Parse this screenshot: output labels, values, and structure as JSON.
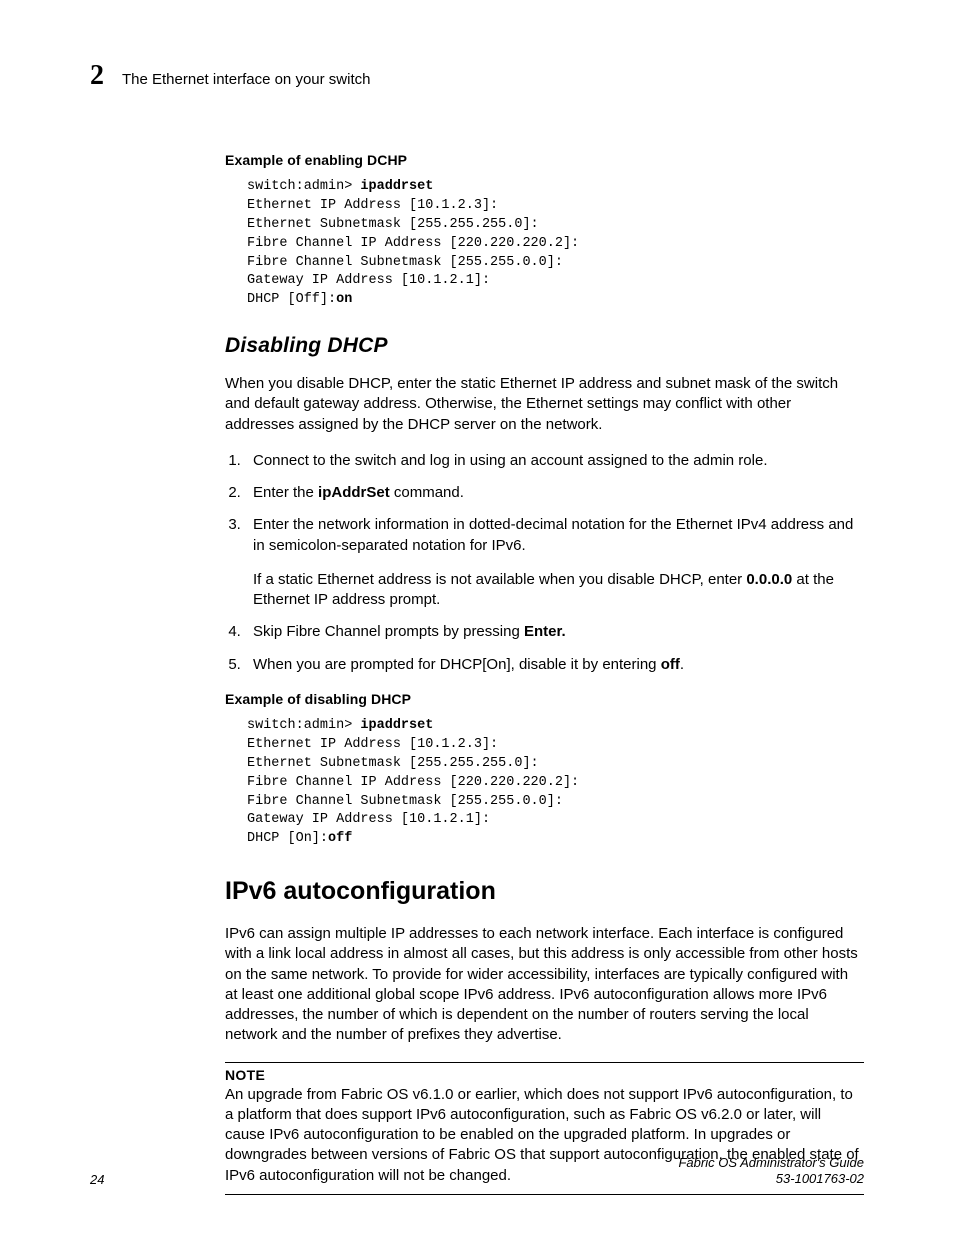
{
  "header": {
    "chapter_number": "2",
    "running_title": "The Ethernet interface on your switch"
  },
  "example1": {
    "label": "Example  of enabling DCHP",
    "prompt": "switch:admin> ",
    "cmd": "ipaddrset",
    "lines": [
      "Ethernet IP Address [10.1.2.3]:",
      "Ethernet Subnetmask [255.255.255.0]:",
      "Fibre Channel IP Address [220.220.220.2]:",
      "Fibre Channel Subnetmask [255.255.0.0]:",
      "Gateway IP Address [10.1.2.1]:"
    ],
    "last_prefix": "DHCP [Off]:",
    "last_bold": "on"
  },
  "section_disable": {
    "heading": "Disabling DHCP",
    "intro": "When you disable DHCP, enter the static Ethernet IP address and subnet mask of the switch and default gateway address. Otherwise, the Ethernet settings may conflict with other addresses assigned by the DHCP server on the network.",
    "steps": {
      "s1": "Connect to the switch and log in using an account assigned to the admin role.",
      "s2_pre": "Enter the ",
      "s2_cmd": "ipAddrSet",
      "s2_post": " command.",
      "s3": "Enter the network information in dotted-decimal notation for the Ethernet IPv4 address and in semicolon-separated notation for IPv6.",
      "s3b_pre": "If a static Ethernet address is not available when you disable DHCP, enter ",
      "s3b_bold": "0.0.0.0",
      "s3b_post": " at the Ethernet IP address prompt.",
      "s4_pre": "Skip Fibre Channel prompts by pressing ",
      "s4_bold": "Enter.",
      "s5_pre": "When you are prompted for DHCP[On], disable it by entering ",
      "s5_bold": "off",
      "s5_post": "."
    }
  },
  "example2": {
    "label": "Example of disabling DHCP",
    "prompt": "switch:admin> ",
    "cmd": "ipaddrset",
    "lines": [
      "Ethernet IP Address [10.1.2.3]:",
      "Ethernet Subnetmask [255.255.255.0]:",
      "Fibre Channel IP Address [220.220.220.2]:",
      "Fibre Channel Subnetmask [255.255.0.0]:",
      "Gateway IP Address [10.1.2.1]:"
    ],
    "last_prefix": "DHCP [On]:",
    "last_bold": "off"
  },
  "section_ipv6": {
    "heading": "IPv6 autoconfiguration",
    "para": "IPv6 can assign multiple IP addresses to each network interface. Each interface is configured with a link local address in almost all cases, but this address is only accessible from other hosts on the same network. To provide for wider accessibility, interfaces are typically configured with at least one additional global scope IPv6 address. IPv6 autoconfiguration allows more IPv6 addresses, the number of which is dependent on the number of routers serving the local network and the number of prefixes they advertise.",
    "note_label": "NOTE",
    "note_text": "An upgrade from Fabric OS v6.1.0 or earlier, which does not support IPv6 autoconfiguration, to a platform that does support IPv6 autoconfiguration, such as Fabric OS v6.2.0 or later, will cause IPv6 autoconfiguration to be enabled on the upgraded platform. In upgrades or downgrades between versions of Fabric OS that support autoconfiguration, the enabled state of IPv6 autoconfiguration will not be changed."
  },
  "footer": {
    "page_number": "24",
    "doc_title": "Fabric OS Administrator's Guide",
    "doc_id": "53-1001763-02"
  }
}
